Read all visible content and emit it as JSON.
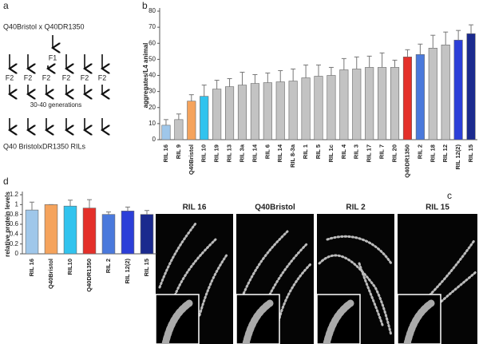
{
  "panel_labels": [
    "a",
    "b",
    "c",
    "d"
  ],
  "diagram": {
    "cross": "Q40Bristol x  Q40DR1350",
    "f1": "F1",
    "f2": [
      "F2",
      "F2",
      "F2",
      "F2",
      "F2",
      "F2"
    ],
    "generations": "30-40 generations",
    "result": "Q40 BristolxDR1350 RILs"
  },
  "images": {
    "labels": [
      "RIL 16",
      "Q40Bristol",
      "RIL 2",
      "RIL 15"
    ]
  },
  "chart_data": [
    {
      "type": "bar",
      "ylabel": "aggregates/L4 animal",
      "categories": [
        "RIL 16",
        "RIL 9",
        "Q40Bristol",
        "RIL 10",
        "RIL 19",
        "RIL 13",
        "RIL 3a",
        "RIL 14",
        "RIL 6",
        "RIL 14",
        "RIL 8-3a",
        "RIL 1",
        "RIL 5",
        "RIL 1c",
        "RIL 4",
        "RIL 3",
        "RIL 17",
        "RIL 7",
        "RIL 20",
        "Q40DR1350",
        "RIL 2",
        "RIL 18",
        "RIL 12",
        "RIL 12(2)",
        "RIL 15"
      ],
      "values": [
        9,
        12.5,
        24,
        27,
        31.5,
        33,
        34,
        35,
        35.5,
        36,
        36.5,
        38.5,
        39.5,
        40,
        43.5,
        44,
        45,
        45,
        45,
        51.5,
        53,
        57,
        59,
        62,
        66
      ],
      "errors": [
        3.5,
        3.5,
        4,
        7,
        5.5,
        5,
        8,
        5.5,
        6,
        7,
        7.5,
        8,
        7,
        5,
        7,
        7.5,
        7,
        9,
        4.5,
        4.5,
        6.5,
        8,
        8,
        6,
        5.5
      ],
      "colors": [
        "#9fc7ea",
        "#c3c3c3",
        "#f5a35c",
        "#31c3ee",
        "#c3c3c3",
        "#c3c3c3",
        "#c3c3c3",
        "#c3c3c3",
        "#c3c3c3",
        "#c3c3c3",
        "#c3c3c3",
        "#c3c3c3",
        "#c3c3c3",
        "#c3c3c3",
        "#c3c3c3",
        "#c3c3c3",
        "#c3c3c3",
        "#c3c3c3",
        "#c3c3c3",
        "#e4302a",
        "#4a79dc",
        "#c3c3c3",
        "#c3c3c3",
        "#2c3fd8",
        "#1b2a8e"
      ],
      "ylim": [
        0,
        80
      ],
      "yticks": [
        0,
        10,
        20,
        30,
        40,
        50,
        60,
        70,
        80
      ]
    },
    {
      "type": "bar",
      "ylabel": "relative protein levels",
      "categories": [
        "RIL 16",
        "Q40Bristol",
        "RIL10",
        "Q40DR1350",
        "RIL 2",
        "RIL 12(2)",
        "RIL 15"
      ],
      "values": [
        0.89,
        1.0,
        0.97,
        0.93,
        0.8,
        0.87,
        0.8
      ],
      "errors": [
        0.16,
        0,
        0.12,
        0.17,
        0.05,
        0.08,
        0.08
      ],
      "colors": [
        "#9fc7ea",
        "#f5a35c",
        "#31c3ee",
        "#e4302a",
        "#4a79dc",
        "#2c3fd8",
        "#1b2a8e"
      ],
      "ylim": [
        0,
        1.2
      ],
      "yticks": [
        0,
        0.2,
        0.4,
        0.6,
        0.8,
        1,
        1.2
      ]
    }
  ]
}
